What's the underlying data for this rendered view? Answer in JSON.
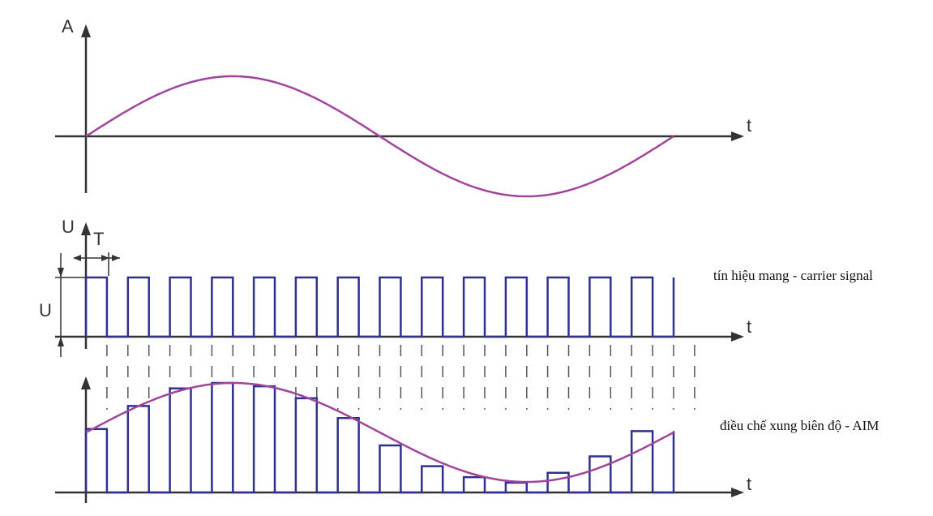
{
  "labels": {
    "amplitude_axis": "A",
    "time_axis": "t",
    "voltage_axis": "U",
    "period": "T",
    "voltage_level": "U",
    "carrier_caption": "tín hiệu mang - carrier signal",
    "aim_caption": "điều chế xung biên độ - AIM"
  },
  "carrier": {
    "pulse_count": 14,
    "duty_cycle": 0.5
  },
  "modulating_signal": {
    "waveform": "sine",
    "cycles": 1
  },
  "aim_sample_levels": [
    0.58,
    0.79,
    0.95,
    1.0,
    0.97,
    0.86,
    0.68,
    0.43,
    0.24,
    0.14,
    0.09,
    0.18,
    0.33,
    0.56
  ],
  "colors": {
    "axis": "#333333",
    "sine": "#a0449c",
    "pulse": "#2e3192",
    "dash": "#555555"
  }
}
